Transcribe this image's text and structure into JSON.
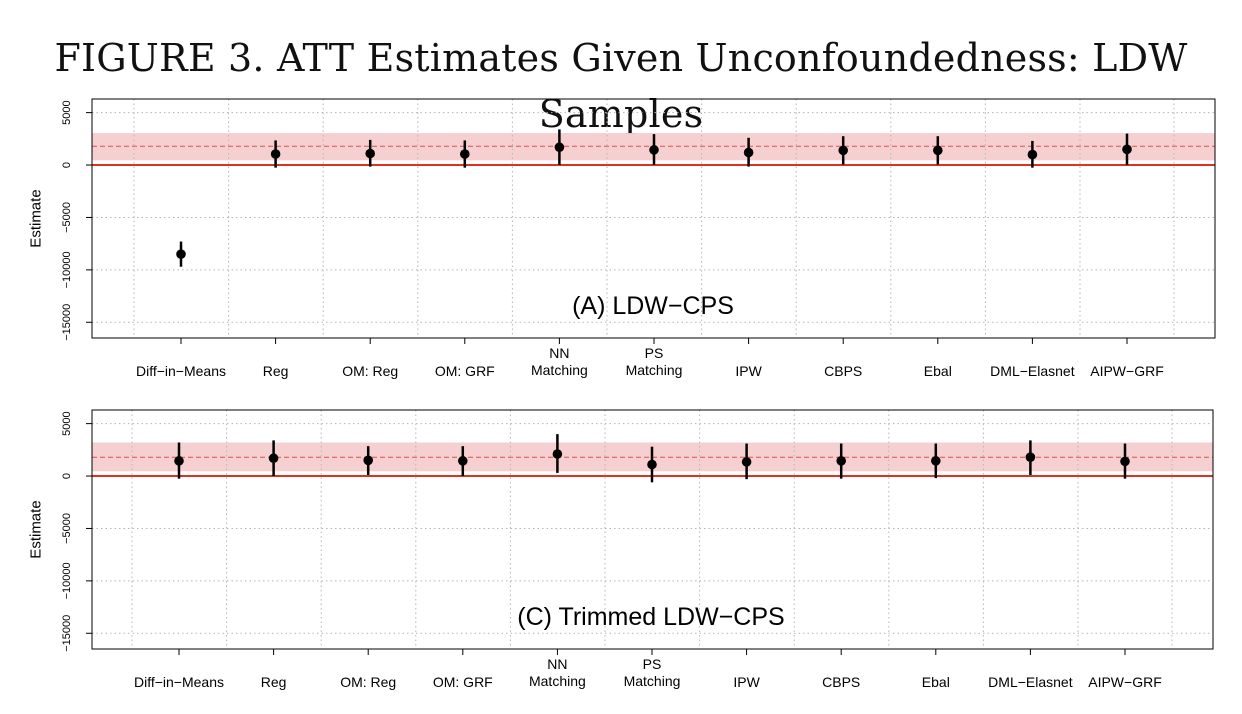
{
  "figure": {
    "title": "FIGURE 3. ATT Estimates Given Unconfoundedness: LDW Samples"
  },
  "chart_data": [
    {
      "type": "scatter",
      "panel_label": "(A) LDW−CPS",
      "ylabel": "Estimate",
      "ylim": [
        -16500,
        6300
      ],
      "yticks": [
        5000,
        0,
        -5000,
        -10000,
        -15000
      ],
      "ytick_labels": [
        "5000",
        "0",
        "−5000",
        "−10000",
        "−15000"
      ],
      "categories": [
        "Diff−in−Means",
        "Reg",
        "OM: Reg",
        "OM: GRF",
        "NN\nMatching",
        "PS\nMatching",
        "IPW",
        "CBPS",
        "Ebal",
        "DML−Elasnet",
        "AIPW−GRF"
      ],
      "estimates": [
        -8500,
        1050,
        1100,
        1050,
        1700,
        1450,
        1200,
        1400,
        1400,
        1000,
        1500
      ],
      "ci_lower": [
        -9700,
        -250,
        -150,
        -250,
        0,
        0,
        -150,
        50,
        50,
        -250,
        0
      ],
      "ci_upper": [
        -7300,
        2350,
        2400,
        2350,
        3400,
        2950,
        2600,
        2750,
        2750,
        2300,
        3000
      ],
      "benchmark": {
        "estimate": 1794,
        "band": [
          450,
          3050
        ]
      },
      "zero_line": 0,
      "grid": true
    },
    {
      "type": "scatter",
      "panel_label": "(C) Trimmed LDW−CPS",
      "ylabel": "Estimate",
      "ylim": [
        -16500,
        6300
      ],
      "yticks": [
        5000,
        0,
        -5000,
        -10000,
        -15000
      ],
      "ytick_labels": [
        "5000",
        "0",
        "−5000",
        "−10000",
        "−15000"
      ],
      "categories": [
        "Diff−in−Means",
        "Reg",
        "OM: Reg",
        "OM: GRF",
        "NN\nMatching",
        "PS\nMatching",
        "IPW",
        "CBPS",
        "Ebal",
        "DML−Elasnet",
        "AIPW−GRF"
      ],
      "estimates": [
        1450,
        1700,
        1500,
        1450,
        2100,
        1100,
        1350,
        1450,
        1450,
        1800,
        1400
      ],
      "ci_lower": [
        -250,
        0,
        100,
        0,
        300,
        -600,
        -300,
        -250,
        -200,
        100,
        -250
      ],
      "ci_upper": [
        3200,
        3400,
        2850,
        2850,
        4000,
        2800,
        3100,
        3100,
        3100,
        3400,
        3100
      ],
      "benchmark": {
        "estimate": 1794,
        "band": [
          450,
          3200
        ]
      },
      "zero_line": 0,
      "grid": true
    }
  ]
}
